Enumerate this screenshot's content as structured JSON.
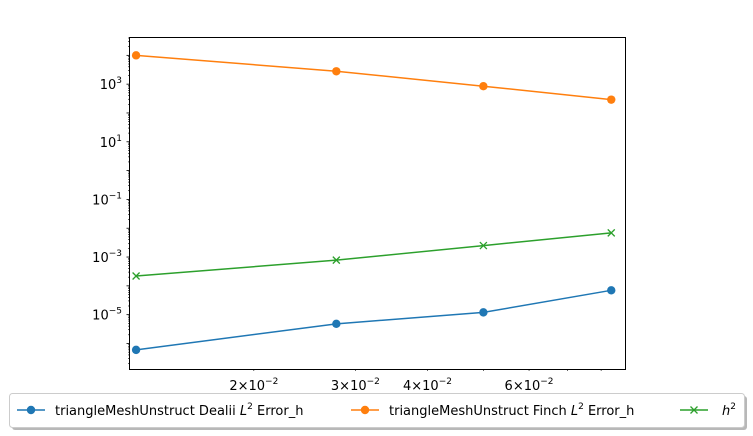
{
  "chart_data": {
    "type": "line",
    "xscale": "log",
    "yscale": "log",
    "xlim": [
      0.0122,
      0.088
    ],
    "ylim": [
      1.3e-07,
      40000
    ],
    "x_ticks": [
      {
        "value": 0.02,
        "mantissa": "2",
        "exp": "−2"
      },
      {
        "value": 0.03,
        "mantissa": "3",
        "exp": "−2"
      },
      {
        "value": 0.04,
        "mantissa": "4",
        "exp": "−2"
      },
      {
        "value": 0.06,
        "mantissa": "6",
        "exp": "−2"
      }
    ],
    "x_minor_ticks": [
      0.05,
      0.07,
      0.08
    ],
    "y_ticks": [
      {
        "value": 1000.0,
        "exp": "3"
      },
      {
        "value": 10.0,
        "exp": "1"
      },
      {
        "value": 0.1,
        "exp": "−1"
      },
      {
        "value": 0.001,
        "exp": "−3"
      },
      {
        "value": 1e-05,
        "exp": "−5"
      }
    ],
    "x": [
      0.0125,
      0.0278,
      0.05,
      0.0833
    ],
    "series": [
      {
        "name": "triangleMeshUnstruct Dealii L² Error_h",
        "label_main": "triangleMeshUnstruct Dealii ",
        "label_L": "L",
        "label_sup": "2",
        "label_tail": " Error_h",
        "color": "#1f77b4",
        "marker": "circle",
        "values": [
          6e-07,
          4.8e-06,
          1.2e-05,
          7e-05
        ]
      },
      {
        "name": "triangleMeshUnstruct Finch L² Error_h",
        "label_main": "triangleMeshUnstruct Finch ",
        "label_L": "L",
        "label_sup": "2",
        "label_tail": " Error_h",
        "color": "#ff7f0e",
        "marker": "circle",
        "values": [
          10000,
          2800,
          850,
          290
        ]
      },
      {
        "name": "h²",
        "label_main": "",
        "label_L": "h",
        "label_sup": "2",
        "label_tail": "",
        "color": "#2ca02c",
        "marker": "x",
        "values": [
          0.00022,
          0.00078,
          0.0025,
          0.0069
        ]
      }
    ],
    "grid": false,
    "legend_position": "bottom, outside plot, single row"
  },
  "text": {
    "ten": "10"
  }
}
